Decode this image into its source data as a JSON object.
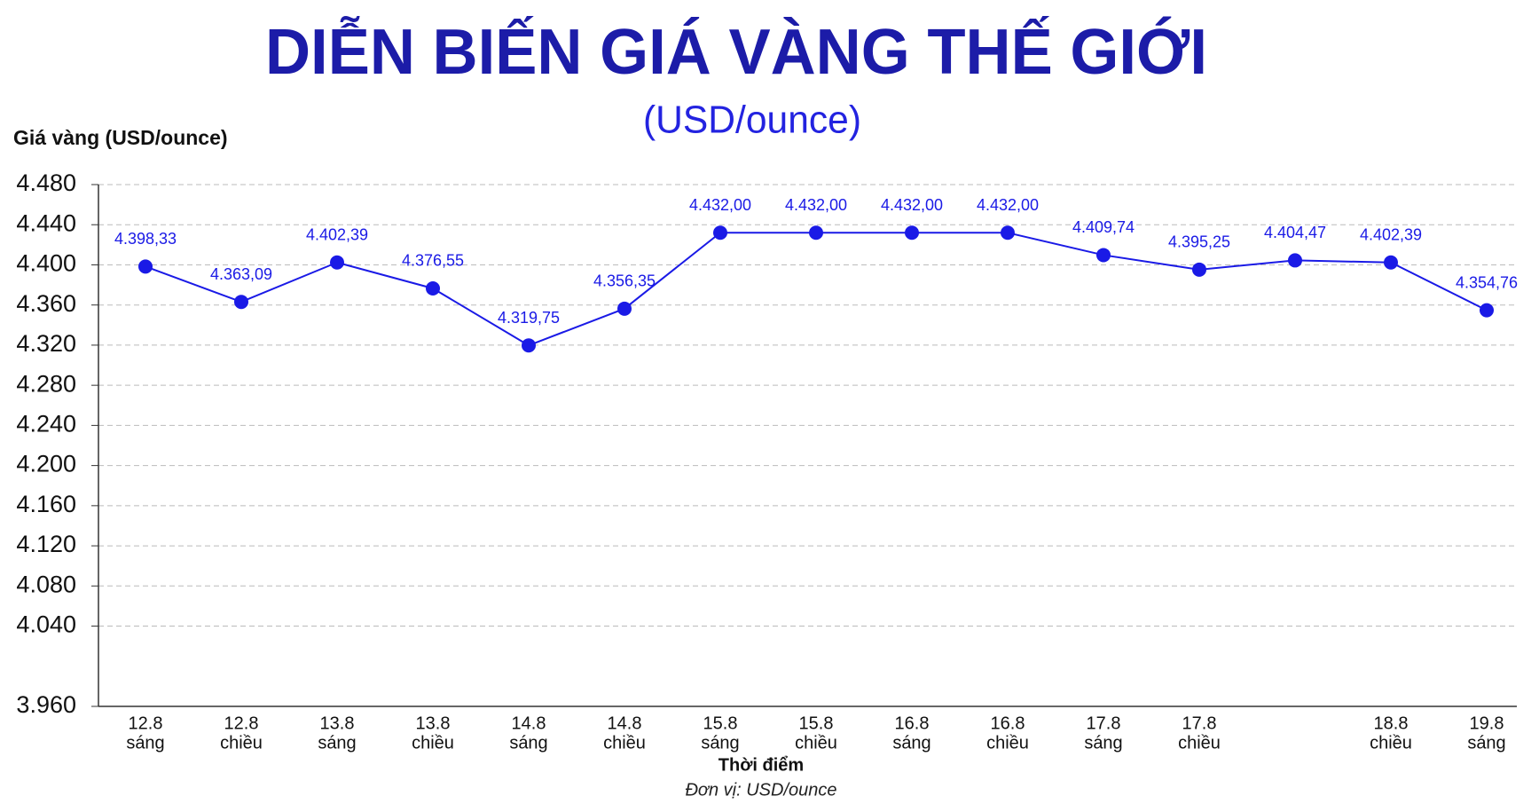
{
  "chart_data": {
    "type": "line",
    "title": "DIỄN BIẾN GIÁ VÀNG THẾ GIỚI",
    "subtitle": "(USD/ounce)",
    "y_label": "Giá vàng (USD/ounce)",
    "x_label": "Thời điểm",
    "note": "Đơn vị: USD/ounce",
    "categories": [
      [
        "12.8",
        "sáng"
      ],
      [
        "12.8",
        "chiều"
      ],
      [
        "13.8",
        "sáng"
      ],
      [
        "13.8",
        "chiều"
      ],
      [
        "14.8",
        "sáng"
      ],
      [
        "14.8",
        "chiều"
      ],
      [
        "15.8",
        "sáng"
      ],
      [
        "15.8",
        "chiều"
      ],
      [
        "16.8",
        "sáng"
      ],
      [
        "16.8",
        "chiều"
      ],
      [
        "17.8",
        "sáng"
      ],
      [
        "17.8",
        "chiều"
      ],
      null,
      [
        "18.8",
        "chiều"
      ],
      [
        "19.8",
        "sáng"
      ]
    ],
    "series": [
      {
        "color": "#1a1ae6",
        "values": [
          4398.33,
          4363.09,
          4402.39,
          4376.55,
          4319.75,
          4356.35,
          4432.0,
          4432.0,
          4432.0,
          4432.0,
          4409.74,
          4395.25,
          4404.47,
          4402.39,
          4354.76
        ],
        "value_labels": [
          "4.398,33",
          "4.363,09",
          "4.402,39",
          "4.376,55",
          "4.319,75",
          "4.356,35",
          "4.432,00",
          "4.432,00",
          "4.432,00",
          "4.432,00",
          "4.409,74",
          "4.395,25",
          "4.404,47",
          "4.402,39",
          "4.354,76"
        ]
      }
    ],
    "ylim": [
      3960,
      4480
    ],
    "yticks": [
      {
        "value": 4480,
        "label": "4.480"
      },
      {
        "value": 4440,
        "label": "4.440"
      },
      {
        "value": 4400,
        "label": "4.400"
      },
      {
        "value": 4360,
        "label": "4.360"
      },
      {
        "value": 4320,
        "label": "4.320"
      },
      {
        "value": 4280,
        "label": "4.280"
      },
      {
        "value": 4240,
        "label": "4.240"
      },
      {
        "value": 4200,
        "label": "4.200"
      },
      {
        "value": 4160,
        "label": "4.160"
      },
      {
        "value": 4120,
        "label": "4.120"
      },
      {
        "value": 4080,
        "label": "4.080"
      },
      {
        "value": 4040,
        "label": "4.040"
      },
      {
        "value": 3960,
        "label": "3.960"
      }
    ],
    "grid": true
  }
}
